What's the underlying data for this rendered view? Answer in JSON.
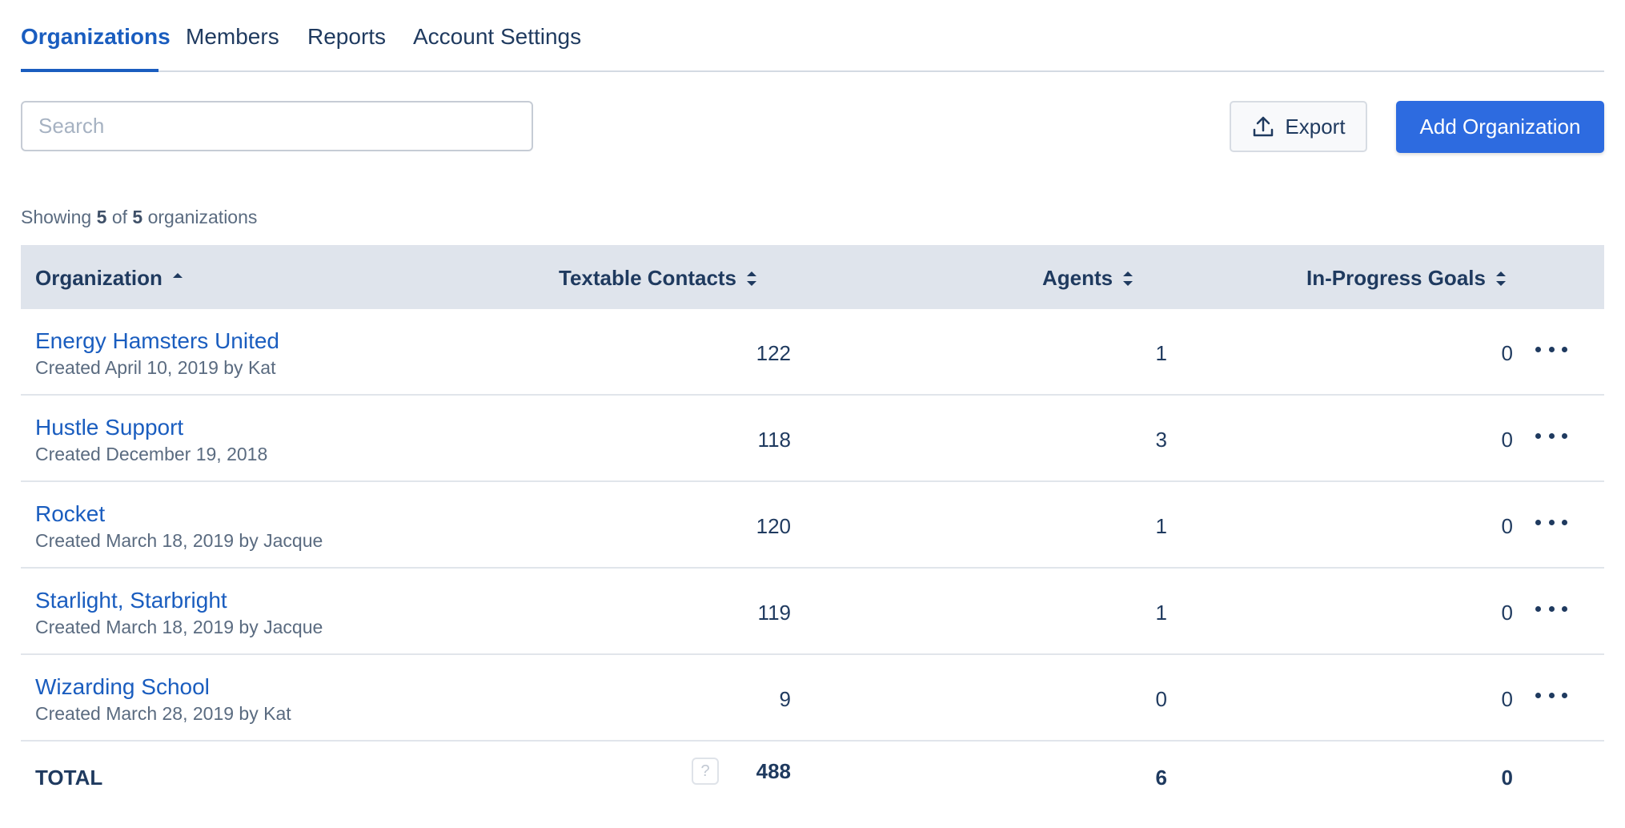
{
  "tabs": [
    {
      "label": "Organizations",
      "active": true
    },
    {
      "label": "Members",
      "active": false
    },
    {
      "label": "Reports",
      "active": false
    },
    {
      "label": "Account Settings",
      "active": false
    }
  ],
  "search": {
    "placeholder": "Search",
    "value": ""
  },
  "toolbar": {
    "export_label": "Export",
    "export_icon": "upload-icon",
    "add_label": "Add Organization"
  },
  "summary": {
    "prefix": "Showing",
    "shown": "5",
    "of": "of",
    "total": "5",
    "suffix": "organizations"
  },
  "table": {
    "columns": [
      {
        "label": "Organization",
        "sort": "ascending"
      },
      {
        "label": "Textable Contacts",
        "sort": "none"
      },
      {
        "label": "Agents",
        "sort": "none"
      },
      {
        "label": "In-Progress Goals",
        "sort": "none"
      }
    ],
    "rows": [
      {
        "name": "Energy Hamsters United",
        "meta": "Created April 10, 2019 by Kat",
        "contacts": "122",
        "agents": "1",
        "goals": "0"
      },
      {
        "name": "Hustle Support",
        "meta": "Created December 19, 2018",
        "contacts": "118",
        "agents": "3",
        "goals": "0"
      },
      {
        "name": "Rocket",
        "meta": "Created March 18, 2019 by Jacque",
        "contacts": "120",
        "agents": "1",
        "goals": "0"
      },
      {
        "name": "Starlight, Starbright",
        "meta": "Created March 18, 2019 by Jacque",
        "contacts": "119",
        "agents": "1",
        "goals": "0"
      },
      {
        "name": "Wizarding School",
        "meta": "Created March 28, 2019 by Kat",
        "contacts": "9",
        "agents": "0",
        "goals": "0"
      }
    ],
    "totals": {
      "label": "TOTAL",
      "help_icon_text": "?",
      "contacts": "488",
      "agents": "6",
      "goals": "0"
    }
  },
  "colors": {
    "accent": "#1a5dbf",
    "primary_button": "#2d6be0",
    "header_bg": "#dfe4ec",
    "text": "#1f3a5f"
  }
}
